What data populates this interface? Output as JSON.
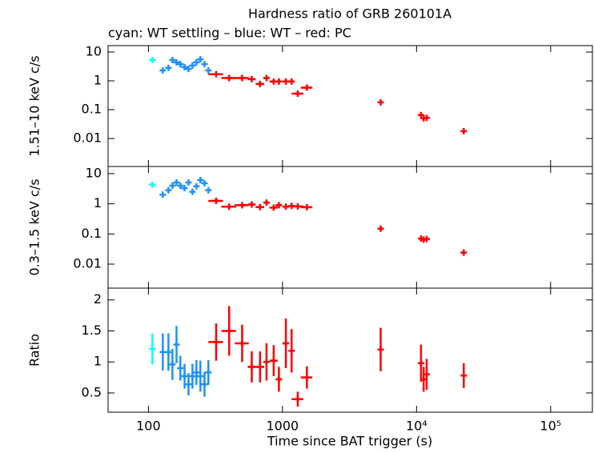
{
  "chart_data": [
    {
      "type": "scatter",
      "title": "Hardness ratio of GRB 260101A",
      "subtitle": "cyan: WT settling – blue: WT – red: PC",
      "ylabel": "1.51–10 keV c/s",
      "xlog": true,
      "ylog": true,
      "xlim": [
        50,
        205000
      ],
      "xticks": [
        100,
        1000,
        10000,
        100000
      ],
      "ylim": [
        0.00107,
        16.7
      ],
      "yticks": [
        10,
        1,
        0.1,
        0.01
      ],
      "series": [
        {
          "color": "#00ffff",
          "x": [
            107
          ],
          "values": [
            5.3
          ]
        },
        {
          "color": "#1e90ff",
          "x": [
            128,
            141,
            151,
            162,
            173,
            186,
            199,
            213,
            228,
            244,
            262,
            280
          ],
          "values": [
            2.3,
            2.8,
            5.3,
            4.4,
            3.8,
            3.0,
            2.6,
            3.4,
            4.4,
            5.6,
            3.8,
            2.3
          ]
        },
        {
          "color": "#ff0000",
          "x": [
            320,
            400,
            500,
            590,
            680,
            760,
            860,
            940,
            1060,
            1170,
            1300,
            1520,
            5400,
            10800,
            11300,
            11900,
            22500
          ],
          "xerr": [
            40,
            50,
            60,
            40,
            50,
            40,
            60,
            50,
            60,
            60,
            130,
            150,
            100,
            300,
            300,
            400,
            700
          ],
          "values": [
            1.7,
            1.25,
            1.25,
            1.15,
            0.78,
            1.25,
            0.95,
            0.95,
            0.95,
            0.95,
            0.36,
            0.58,
            0.18,
            0.065,
            0.05,
            0.052,
            0.018
          ]
        }
      ]
    },
    {
      "type": "scatter",
      "ylabel": "0.3–1.5 keV c/s",
      "xlog": true,
      "ylog": true,
      "xlim": [
        50,
        205000
      ],
      "xticks": [
        100,
        1000,
        10000,
        100000
      ],
      "ylim": [
        0.0016,
        17.3
      ],
      "yticks": [
        10,
        1,
        0.1,
        0.01
      ],
      "series": [
        {
          "color": "#00ffff",
          "x": [
            107
          ],
          "values": [
            4.3
          ]
        },
        {
          "color": "#1e90ff",
          "x": [
            128,
            141,
            151,
            162,
            173,
            186,
            199,
            213,
            228,
            244,
            262,
            280
          ],
          "values": [
            2.0,
            2.8,
            4.0,
            5.1,
            4.0,
            3.3,
            5.1,
            2.5,
            3.8,
            6.1,
            4.8,
            2.8
          ]
        },
        {
          "color": "#ff0000",
          "x": [
            320,
            400,
            500,
            590,
            680,
            760,
            860,
            940,
            1060,
            1170,
            1300,
            1520,
            5400,
            10800,
            11300,
            11900,
            22500
          ],
          "xerr": [
            40,
            50,
            60,
            40,
            50,
            40,
            60,
            50,
            60,
            60,
            130,
            150,
            100,
            300,
            300,
            400,
            700
          ],
          "values": [
            1.25,
            0.8,
            0.9,
            0.95,
            0.78,
            1.1,
            0.75,
            0.9,
            0.8,
            0.85,
            0.82,
            0.77,
            0.15,
            0.07,
            0.065,
            0.068,
            0.024
          ]
        }
      ]
    },
    {
      "type": "scatter",
      "ylabel": "Ratio",
      "xlabel": "Time since BAT trigger (s)",
      "xlog": true,
      "ylog": false,
      "xlim": [
        50,
        205000
      ],
      "xticks": [
        100,
        1000,
        {
          "value": 10000,
          "label": "10⁴"
        },
        {
          "value": 100000,
          "label": "10⁵"
        }
      ],
      "ylim": [
        0.19,
        2.19
      ],
      "yticks": [
        0.5,
        1,
        1.5,
        2
      ],
      "series": [
        {
          "color": "#00ffff",
          "x": [
            107
          ],
          "values": [
            1.21
          ],
          "yerr": [
            0.25
          ]
        },
        {
          "color": "#1e90ff",
          "x": [
            128,
            141,
            151,
            162,
            173,
            186,
            199,
            213,
            228,
            244,
            262,
            280
          ],
          "values": [
            1.16,
            1.16,
            0.96,
            1.28,
            0.9,
            0.77,
            0.64,
            0.77,
            0.83,
            0.77,
            0.64,
            0.83
          ],
          "yerr": [
            0.3,
            0.3,
            0.25,
            0.3,
            0.2,
            0.2,
            0.18,
            0.2,
            0.2,
            0.25,
            0.2,
            0.2
          ]
        },
        {
          "color": "#ff0000",
          "x": [
            320,
            400,
            500,
            590,
            680,
            760,
            860,
            940,
            1060,
            1170,
            1300,
            1520,
            5400,
            10800,
            11300,
            11900,
            22500
          ],
          "xerr": [
            40,
            50,
            60,
            40,
            50,
            40,
            60,
            50,
            60,
            60,
            130,
            150,
            100,
            300,
            300,
            400,
            700
          ],
          "values": [
            1.32,
            1.5,
            1.3,
            0.92,
            0.92,
            1.0,
            1.02,
            0.72,
            1.3,
            1.18,
            0.4,
            0.75,
            1.2,
            0.98,
            0.72,
            0.8,
            0.78
          ],
          "yerr": [
            0.3,
            0.4,
            0.3,
            0.25,
            0.25,
            0.3,
            0.25,
            0.2,
            0.4,
            0.35,
            0.12,
            0.18,
            0.35,
            0.3,
            0.2,
            0.25,
            0.2
          ]
        }
      ]
    }
  ]
}
